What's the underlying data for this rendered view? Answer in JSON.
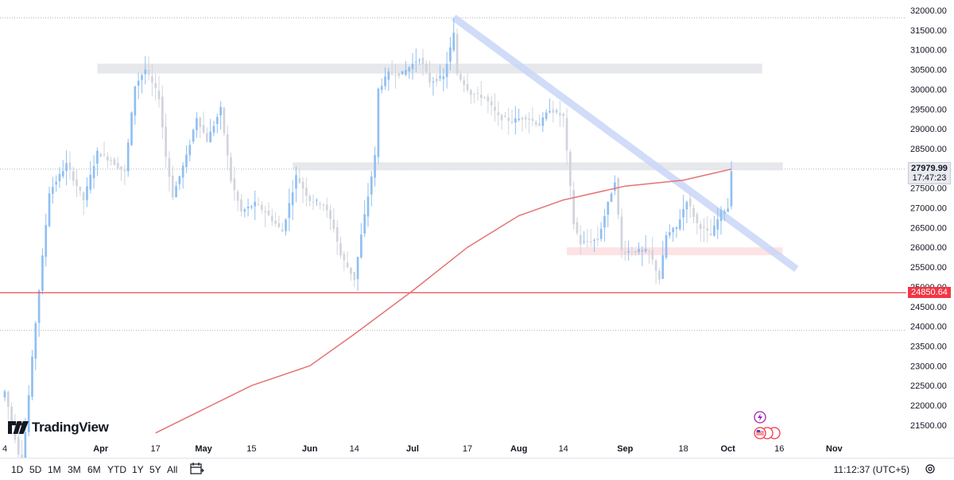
{
  "chart_data": {
    "type": "candlestick",
    "symbol_timeframe": "1D",
    "ylim": [
      21200,
      32200
    ],
    "y_ticks": [
      32000,
      31500,
      31000,
      30500,
      30000,
      29500,
      29000,
      28500,
      28000,
      27500,
      27000,
      26500,
      26000,
      25500,
      25000,
      24500,
      24000,
      23500,
      23000,
      22500,
      22000,
      21500
    ],
    "y_tick_labels": [
      "32000.00",
      "31500.00",
      "31000.00",
      "30500.00",
      "30000.00",
      "29500.00",
      "29000.00",
      "28500.00",
      "28000.00",
      "27500.00",
      "27000.00",
      "26500.00",
      "26000.00",
      "25500.00",
      "25000.00",
      "24500.00",
      "24000.00",
      "23500.00",
      "23000.00",
      "22500.00",
      "22000.00",
      "21500.00"
    ],
    "x_start": "2023-03-04",
    "x_end": "2023-11-13",
    "x_ticks": [
      {
        "date": "2023-03-04",
        "label": "4",
        "bold": false
      },
      {
        "date": "2023-04-01",
        "label": "Apr",
        "bold": true
      },
      {
        "date": "2023-04-17",
        "label": "17",
        "bold": false
      },
      {
        "date": "2023-05-01",
        "label": "May",
        "bold": true
      },
      {
        "date": "2023-05-15",
        "label": "15",
        "bold": false
      },
      {
        "date": "2023-06-01",
        "label": "Jun",
        "bold": true
      },
      {
        "date": "2023-06-14",
        "label": "14",
        "bold": false
      },
      {
        "date": "2023-07-01",
        "label": "Jul",
        "bold": true
      },
      {
        "date": "2023-07-17",
        "label": "17",
        "bold": false
      },
      {
        "date": "2023-08-01",
        "label": "Aug",
        "bold": true
      },
      {
        "date": "2023-08-14",
        "label": "14",
        "bold": false
      },
      {
        "date": "2023-09-01",
        "label": "Sep",
        "bold": true
      },
      {
        "date": "2023-09-18",
        "label": "18",
        "bold": false
      },
      {
        "date": "2023-10-01",
        "label": "Oct",
        "bold": true
      },
      {
        "date": "2023-10-16",
        "label": "16",
        "bold": false
      },
      {
        "date": "2023-11-01",
        "label": "Nov",
        "bold": true
      }
    ],
    "closes": [
      {
        "date": "2023-03-04",
        "c": 22350
      },
      {
        "date": "2023-03-09",
        "c": 20400
      },
      {
        "date": "2023-03-13",
        "c": 24100
      },
      {
        "date": "2023-03-17",
        "c": 27400
      },
      {
        "date": "2023-03-22",
        "c": 28100
      },
      {
        "date": "2023-03-27",
        "c": 27200
      },
      {
        "date": "2023-03-31",
        "c": 28400
      },
      {
        "date": "2023-04-04",
        "c": 28200
      },
      {
        "date": "2023-04-08",
        "c": 27900
      },
      {
        "date": "2023-04-11",
        "c": 30100
      },
      {
        "date": "2023-04-14",
        "c": 30500
      },
      {
        "date": "2023-04-18",
        "c": 29800
      },
      {
        "date": "2023-04-20",
        "c": 28300
      },
      {
        "date": "2023-04-22",
        "c": 27300
      },
      {
        "date": "2023-04-26",
        "c": 28300
      },
      {
        "date": "2023-04-29",
        "c": 29300
      },
      {
        "date": "2023-05-02",
        "c": 28700
      },
      {
        "date": "2023-05-06",
        "c": 29500
      },
      {
        "date": "2023-05-09",
        "c": 27700
      },
      {
        "date": "2023-05-12",
        "c": 26900
      },
      {
        "date": "2023-05-16",
        "c": 27100
      },
      {
        "date": "2023-05-19",
        "c": 26900
      },
      {
        "date": "2023-05-24",
        "c": 26400
      },
      {
        "date": "2023-05-28",
        "c": 27800
      },
      {
        "date": "2023-06-01",
        "c": 27200
      },
      {
        "date": "2023-06-05",
        "c": 27100
      },
      {
        "date": "2023-06-08",
        "c": 26500
      },
      {
        "date": "2023-06-10",
        "c": 25800
      },
      {
        "date": "2023-06-14",
        "c": 25200
      },
      {
        "date": "2023-06-16",
        "c": 26300
      },
      {
        "date": "2023-06-20",
        "c": 28300
      },
      {
        "date": "2023-06-21",
        "c": 30000
      },
      {
        "date": "2023-06-24",
        "c": 30400
      },
      {
        "date": "2023-06-28",
        "c": 30400
      },
      {
        "date": "2023-07-03",
        "c": 30800
      },
      {
        "date": "2023-07-06",
        "c": 30200
      },
      {
        "date": "2023-07-10",
        "c": 30300
      },
      {
        "date": "2023-07-13",
        "c": 31400
      },
      {
        "date": "2023-07-14",
        "c": 30400
      },
      {
        "date": "2023-07-18",
        "c": 29900
      },
      {
        "date": "2023-07-22",
        "c": 29800
      },
      {
        "date": "2023-07-26",
        "c": 29300
      },
      {
        "date": "2023-07-30",
        "c": 29200
      },
      {
        "date": "2023-08-03",
        "c": 29300
      },
      {
        "date": "2023-08-07",
        "c": 29100
      },
      {
        "date": "2023-08-10",
        "c": 29500
      },
      {
        "date": "2023-08-14",
        "c": 29300
      },
      {
        "date": "2023-08-17",
        "c": 26600
      },
      {
        "date": "2023-08-19",
        "c": 26100
      },
      {
        "date": "2023-08-24",
        "c": 26200
      },
      {
        "date": "2023-08-29",
        "c": 27700
      },
      {
        "date": "2023-08-31",
        "c": 25900
      },
      {
        "date": "2023-09-04",
        "c": 25900
      },
      {
        "date": "2023-09-08",
        "c": 25900
      },
      {
        "date": "2023-09-11",
        "c": 25200
      },
      {
        "date": "2023-09-13",
        "c": 26300
      },
      {
        "date": "2023-09-16",
        "c": 26500
      },
      {
        "date": "2023-09-19",
        "c": 27200
      },
      {
        "date": "2023-09-22",
        "c": 26600
      },
      {
        "date": "2023-09-26",
        "c": 26300
      },
      {
        "date": "2023-09-29",
        "c": 26900
      },
      {
        "date": "2023-10-01",
        "c": 27000
      },
      {
        "date": "2023-10-02",
        "c": 27980
      }
    ],
    "ma_line": {
      "color": "#e57373",
      "points": [
        {
          "date": "2023-04-17",
          "v": 21300
        },
        {
          "date": "2023-05-01",
          "v": 21900
        },
        {
          "date": "2023-05-15",
          "v": 22500
        },
        {
          "date": "2023-06-01",
          "v": 23000
        },
        {
          "date": "2023-06-14",
          "v": 23800
        },
        {
          "date": "2023-07-01",
          "v": 24900
        },
        {
          "date": "2023-07-17",
          "v": 26000
        },
        {
          "date": "2023-08-01",
          "v": 26800
        },
        {
          "date": "2023-08-14",
          "v": 27200
        },
        {
          "date": "2023-09-01",
          "v": 27550
        },
        {
          "date": "2023-09-18",
          "v": 27700
        },
        {
          "date": "2023-10-02",
          "v": 27980
        }
      ]
    },
    "last_price": "27979.99",
    "countdown": "17:47:23",
    "horizontal_line_price": "24850.64",
    "horizontal_line_value": 24850.64,
    "colors": {
      "candle": "#90bff2",
      "candle_down": "#d1d4dc",
      "hline": "#f23645",
      "zone": "#e4e5ea",
      "trendline": "#c9d7f8",
      "pink_zone": "#fde0e2"
    }
  },
  "toolbar": {
    "ranges": [
      "1D",
      "5D",
      "1M",
      "3M",
      "6M",
      "YTD",
      "1Y",
      "5Y",
      "All"
    ],
    "clock": "11:12:37 (UTC+5)"
  },
  "logo": {
    "text": "TradingView"
  }
}
